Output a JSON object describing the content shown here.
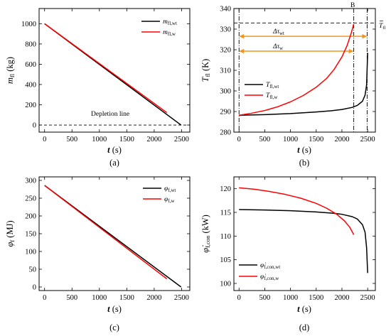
{
  "chart_data": [
    {
      "panel": "(a)",
      "type": "line",
      "xlabel": "t (s)",
      "ylabel": "m_fl (kg)",
      "xlim": [
        -100,
        2650
      ],
      "ylim": [
        -70,
        1150
      ],
      "xticks": [
        0,
        500,
        1000,
        1500,
        2000,
        2500
      ],
      "yticks": [
        0,
        200,
        400,
        600,
        800,
        1000
      ],
      "legend_position": "top-right",
      "series": [
        {
          "name": "m_fl,wt",
          "color": "#000000",
          "dash": "",
          "points": [
            [
              0,
              1000
            ],
            [
              2490,
              0
            ]
          ]
        },
        {
          "name": "m_fl,w",
          "color": "#ff0000",
          "dash": "",
          "points": [
            [
              0,
              1000
            ],
            [
              2230,
              123
            ]
          ]
        }
      ],
      "reference_lines": [
        {
          "orientation": "h",
          "value": 0,
          "color": "#000000",
          "dash": "4,3"
        }
      ],
      "annotations": [
        {
          "text": "Depletion line",
          "x": 800,
          "y": 45
        }
      ]
    },
    {
      "panel": "(b)",
      "type": "line",
      "xlabel": "t (s)",
      "ylabel": "T_fl (K)",
      "xlim": [
        -100,
        2650
      ],
      "ylim": [
        280,
        340
      ],
      "xticks": [
        0,
        500,
        1000,
        1500,
        2000,
        2500
      ],
      "yticks": [
        280,
        290,
        300,
        310,
        320,
        330,
        340
      ],
      "legend_position": "bottom-left",
      "series": [
        {
          "name": "T_fl,wt",
          "color": "#000000",
          "dash": "",
          "points": [
            [
              0,
              288.2
            ],
            [
              500,
              288.5
            ],
            [
              1000,
              289.0
            ],
            [
              1500,
              289.8
            ],
            [
              1800,
              290.4
            ],
            [
              2000,
              291.0
            ],
            [
              2200,
              292.0
            ],
            [
              2300,
              293.0
            ],
            [
              2400,
              295.0
            ],
            [
              2450,
              298.0
            ],
            [
              2480,
              303.0
            ],
            [
              2500,
              318.5
            ]
          ]
        },
        {
          "name": "T_fl,w",
          "color": "#ff0000",
          "dash": "",
          "points": [
            [
              0,
              288.2
            ],
            [
              250,
              289.2
            ],
            [
              500,
              290.5
            ],
            [
              750,
              292.3
            ],
            [
              1000,
              294.7
            ],
            [
              1250,
              297.8
            ],
            [
              1500,
              301.8
            ],
            [
              1700,
              306.0
            ],
            [
              1850,
              310.5
            ],
            [
              2000,
              316.5
            ],
            [
              2100,
              322.0
            ],
            [
              2180,
              328.0
            ],
            [
              2230,
              332.5
            ]
          ]
        }
      ],
      "reference_lines": [
        {
          "orientation": "h",
          "value": 333,
          "color": "#000000",
          "dash": "5,3"
        },
        {
          "orientation": "v",
          "value": 0,
          "color": "#000000",
          "dash": "6,2,1,2"
        },
        {
          "orientation": "v",
          "value": 2230,
          "color": "#000000",
          "dash": "6,2,1,2"
        },
        {
          "orientation": "v",
          "value": 2490,
          "color": "#000000",
          "dash": "6,2,1,2"
        }
      ],
      "arrows": [
        {
          "label": "Δτ_wt",
          "y": 326.5,
          "x1": 0,
          "x2": 2490,
          "color": "#f0961e",
          "label_x": 810,
          "label_y": 328.3
        },
        {
          "label": "Δτ_w",
          "y": 319.3,
          "x1": 0,
          "x2": 2230,
          "color": "#f0961e",
          "label_x": 810,
          "label_y": 321.2
        }
      ],
      "annotations": [
        {
          "text": "B",
          "x": 2265,
          "y": 339.5
        },
        {
          "text": "T_fl",
          "x": 2680,
          "y": 333
        }
      ]
    },
    {
      "panel": "(c)",
      "type": "line",
      "xlabel": "t (s)",
      "ylabel": "φ_f (MJ)",
      "xlim": [
        -100,
        2650
      ],
      "ylim": [
        -10,
        310
      ],
      "xticks": [
        0,
        500,
        1000,
        1500,
        2000,
        2500
      ],
      "yticks": [
        0,
        50,
        100,
        150,
        200,
        250,
        300
      ],
      "legend_position": "top-right",
      "series": [
        {
          "name": "φ_f,wt",
          "color": "#000000",
          "dash": "",
          "points": [
            [
              0,
              286
            ],
            [
              2490,
              0
            ]
          ]
        },
        {
          "name": "φ_f,w",
          "color": "#ff0000",
          "dash": "",
          "points": [
            [
              0,
              286
            ],
            [
              2230,
              23
            ]
          ]
        }
      ]
    },
    {
      "panel": "(d)",
      "type": "line",
      "xlabel": "t (s)",
      "ylabel": "φ̇_f,con (kW)",
      "xlim": [
        -100,
        2650
      ],
      "ylim": [
        98.5,
        122.5
      ],
      "xticks": [
        0,
        500,
        1000,
        1500,
        2000,
        2500
      ],
      "yticks": [
        100,
        105,
        110,
        115,
        120
      ],
      "legend_position": "bottom-left",
      "series": [
        {
          "name": "φ̇_f,con,wt",
          "color": "#000000",
          "dash": "",
          "points": [
            [
              0,
              115.6
            ],
            [
              500,
              115.5
            ],
            [
              1000,
              115.35
            ],
            [
              1500,
              115.1
            ],
            [
              1800,
              114.85
            ],
            [
              2000,
              114.6
            ],
            [
              2200,
              114.1
            ],
            [
              2300,
              113.6
            ],
            [
              2400,
              112.4
            ],
            [
              2450,
              110.8
            ],
            [
              2480,
              107.5
            ],
            [
              2500,
              102.2
            ]
          ]
        },
        {
          "name": "φ̇_f,con,w",
          "color": "#ff0000",
          "dash": "",
          "points": [
            [
              0,
              120.2
            ],
            [
              300,
              119.9
            ],
            [
              600,
              119.4
            ],
            [
              900,
              118.8
            ],
            [
              1200,
              118.0
            ],
            [
              1500,
              116.9
            ],
            [
              1700,
              115.9
            ],
            [
              1900,
              114.6
            ],
            [
              2050,
              113.2
            ],
            [
              2150,
              111.9
            ],
            [
              2230,
              110.3
            ]
          ]
        }
      ]
    }
  ],
  "labels": {
    "a": {
      "panel_letter": "(a)",
      "xlabel_var": "t",
      "xlabel_unit": " (s)",
      "ylabel_var": "m",
      "ylabel_sub": "fl",
      "ylabel_unit": " (kg)",
      "legend_1_var": "m",
      "legend_1_sub": "fl,wt",
      "legend_2_var": "m",
      "legend_2_sub": "fl,w",
      "annotation_depletion": "Depletion line",
      "ticks_x": [
        "0",
        "500",
        "1000",
        "1500",
        "2000",
        "2500"
      ],
      "ticks_y": [
        "0",
        "200",
        "400",
        "600",
        "800",
        "1000"
      ]
    },
    "b": {
      "panel_letter": "(b)",
      "xlabel_var": "t",
      "xlabel_unit": " (s)",
      "ylabel_var": "T",
      "ylabel_sub": "fl",
      "ylabel_unit": " (K)",
      "legend_1_var": "T",
      "legend_1_sub": "fl,wt",
      "legend_2_var": "T",
      "legend_2_sub": "fl,w",
      "arrow_wt_var": "Δτ",
      "arrow_wt_sub": "wt",
      "arrow_w_var": "Δτ",
      "arrow_w_sub": "w",
      "point_b": "B",
      "tbar_var": "T",
      "tbar_sub": "fl",
      "ticks_x": [
        "0",
        "500",
        "1000",
        "1500",
        "2000",
        "2500"
      ],
      "ticks_y": [
        "280",
        "290",
        "300",
        "310",
        "320",
        "330",
        "340"
      ]
    },
    "c": {
      "panel_letter": "(c)",
      "xlabel_var": "t",
      "xlabel_unit": " (s)",
      "ylabel_var": "φ",
      "ylabel_sub": "f",
      "ylabel_unit": " (MJ)",
      "legend_1_var": "φ",
      "legend_1_sub": "f,wt",
      "legend_2_var": "φ",
      "legend_2_sub": "f,w",
      "ticks_x": [
        "0",
        "500",
        "1000",
        "1500",
        "2000",
        "2500"
      ],
      "ticks_y": [
        "0",
        "50",
        "100",
        "150",
        "200",
        "250",
        "300"
      ]
    },
    "d": {
      "panel_letter": "(d)",
      "xlabel_var": "t",
      "xlabel_unit": " (s)",
      "ylabel_var": "φ̇",
      "ylabel_sub": "f,con",
      "ylabel_unit": " (kW)",
      "legend_1_var": "φ̇",
      "legend_1_sub": "f,con,wt",
      "legend_2_var": "φ̇",
      "legend_2_sub": "f,con,w",
      "ticks_x": [
        "0",
        "500",
        "1000",
        "1500",
        "2000",
        "2500"
      ],
      "ticks_y": [
        "100",
        "105",
        "110",
        "115",
        "120"
      ]
    }
  }
}
